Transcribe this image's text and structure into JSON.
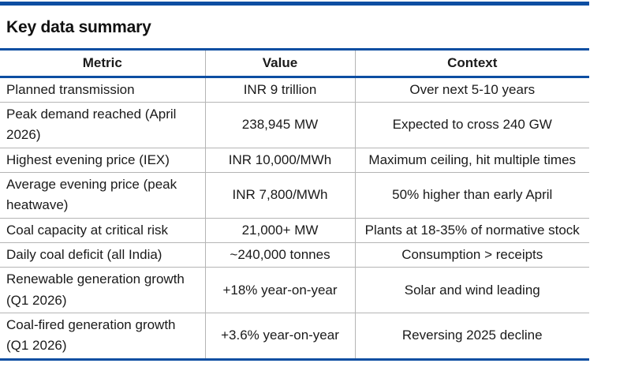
{
  "title": "Key data summary",
  "table": {
    "headers": [
      "Metric",
      "Value",
      "Context"
    ],
    "rows": [
      {
        "metric": "Planned transmission",
        "value": "INR 9 trillion",
        "context": "Over next 5-10 years"
      },
      {
        "metric": "Peak demand reached (April 2026)",
        "value": "238,945 MW",
        "context": "Expected to cross 240 GW"
      },
      {
        "metric": "Highest evening price (IEX)",
        "value": "INR 10,000/MWh",
        "context": "Maximum ceiling, hit multiple times"
      },
      {
        "metric": "Average evening price (peak heatwave)",
        "value": "INR 7,800/MWh",
        "context": "50% higher than early April"
      },
      {
        "metric": "Coal capacity at critical risk",
        "value": "21,000+ MW",
        "context": "Plants at 18-35% of normative stock"
      },
      {
        "metric": "Daily coal deficit (all India)",
        "value": "~240,000 tonnes",
        "context": "Consumption > receipts"
      },
      {
        "metric": "Renewable generation growth (Q1 2026)",
        "value": "+18% year-on-year",
        "context": "Solar and wind leading"
      },
      {
        "metric": "Coal-fired generation growth (Q1 2026)",
        "value": "+3.6% year-on-year",
        "context": "Reversing 2025 decline"
      }
    ]
  },
  "colors": {
    "accent_blue": "#0D4EA2",
    "grid_gray": "#B5B5B5",
    "text": "#1A1A1A"
  }
}
